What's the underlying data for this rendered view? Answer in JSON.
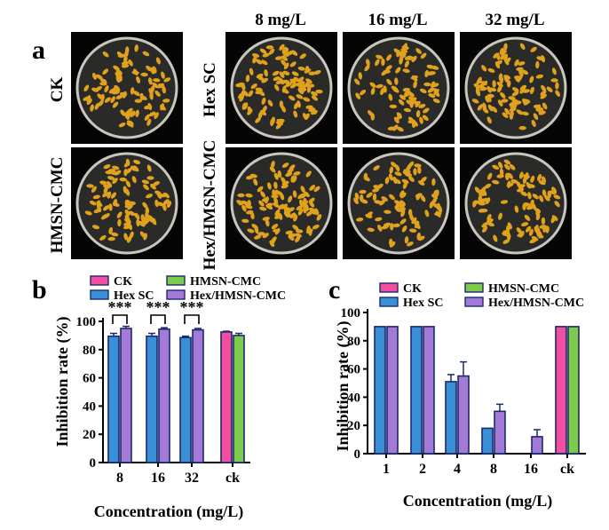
{
  "colors": {
    "ck_fill": "#f34fa0",
    "hexsc_fill": "#3a8fd6",
    "hmsn_fill": "#7ccb4d",
    "hexhmsn_fill": "#a47ad8",
    "edge": "#1a2a6b",
    "plate_bg": "#050505",
    "dish": "#c9c7bd",
    "seed": "#e0a11c"
  },
  "panel_a": {
    "label": "a",
    "column_headers": [
      "8 mg/L",
      "16 mg/L",
      "32 mg/L"
    ],
    "row_labels": [
      "CK",
      "HMSN-CMC",
      "Hex SC",
      "Hex/HMSN-CMC"
    ]
  },
  "chart_data": [
    {
      "type": "bar",
      "panel_label": "b",
      "title": "",
      "xlabel": "Concentration (mg/L)",
      "ylabel": "Inhibition rate (%)",
      "ylim": [
        0,
        100
      ],
      "yticks": [
        "0",
        "20",
        "40",
        "60",
        "80",
        "100"
      ],
      "categories": [
        "8",
        "16",
        "32",
        "ck"
      ],
      "legend": [
        "CK",
        "HMSN-CMC",
        "Hex SC",
        "Hex/HMSN-CMC"
      ],
      "series": [
        {
          "name": "Hex SC",
          "values": [
            89.5,
            89.5,
            88.5,
            null
          ],
          "errors": [
            2.0,
            2.0,
            1.0,
            null
          ]
        },
        {
          "name": "Hex/HMSN-CMC",
          "values": [
            95.0,
            94.5,
            94.0,
            null
          ],
          "errors": [
            1.5,
            1.0,
            1.0,
            null
          ]
        },
        {
          "name": "CK",
          "values": [
            null,
            null,
            null,
            92.5
          ],
          "errors": [
            null,
            null,
            null,
            0.5
          ]
        },
        {
          "name": "HMSN-CMC",
          "values": [
            null,
            null,
            null,
            90.0
          ],
          "errors": [
            null,
            null,
            null,
            1.5
          ]
        }
      ],
      "annotations": [
        "***",
        "***",
        "***"
      ]
    },
    {
      "type": "bar",
      "panel_label": "c",
      "title": "",
      "xlabel": "Concentration (mg/L)",
      "ylabel": "Inhibition rate (%)",
      "ylim": [
        0,
        100
      ],
      "yticks": [
        "0",
        "20",
        "40",
        "60",
        "80",
        "100"
      ],
      "categories": [
        "1",
        "2",
        "4",
        "8",
        "16",
        "ck"
      ],
      "legend": [
        "CK",
        "HMSN-CMC",
        "Hex SC",
        "Hex/HMSN-CMC"
      ],
      "series": [
        {
          "name": "Hex SC",
          "values": [
            90,
            90,
            51,
            18,
            0,
            null
          ],
          "errors": [
            0,
            0,
            5,
            0,
            0,
            null
          ]
        },
        {
          "name": "Hex/HMSN-CMC",
          "values": [
            90,
            90,
            55,
            30,
            12,
            null
          ],
          "errors": [
            0,
            0,
            10,
            5,
            5,
            null
          ]
        },
        {
          "name": "CK",
          "values": [
            null,
            null,
            null,
            null,
            null,
            90
          ],
          "errors": [
            null,
            null,
            null,
            null,
            null,
            0
          ]
        },
        {
          "name": "HMSN-CMC",
          "values": [
            null,
            null,
            null,
            null,
            null,
            90
          ],
          "errors": [
            null,
            null,
            null,
            null,
            null,
            0
          ]
        }
      ]
    }
  ]
}
